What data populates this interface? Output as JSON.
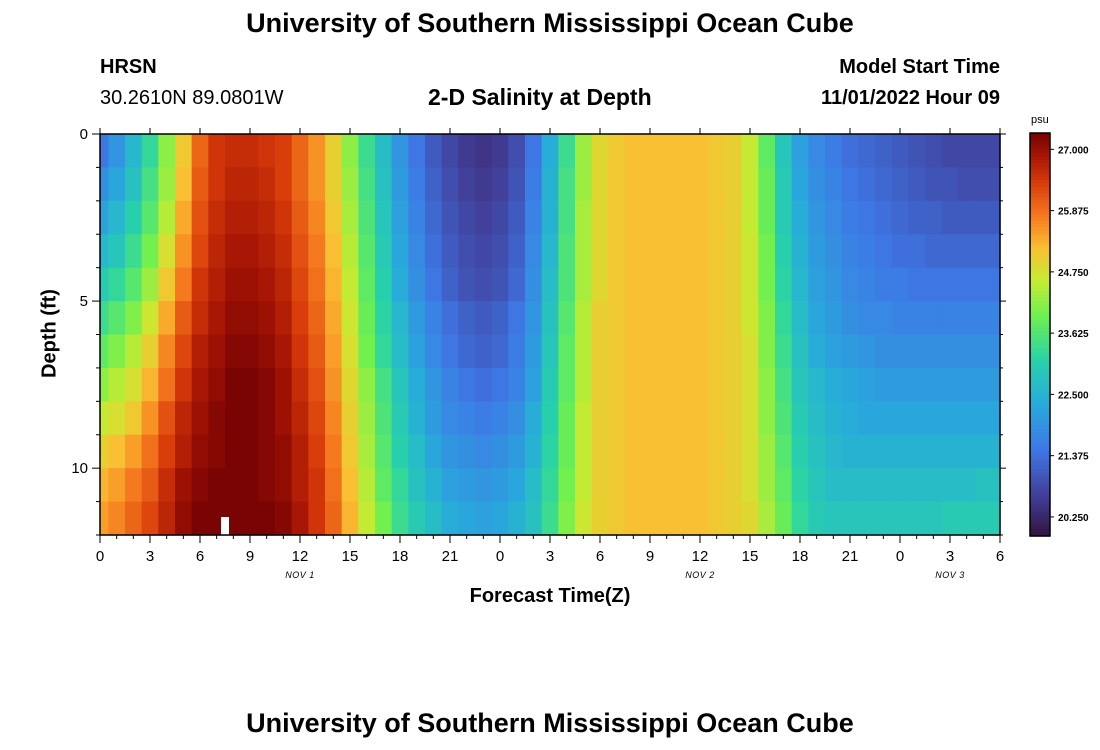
{
  "page": {
    "title": "University of Southern Mississippi Ocean Cube",
    "station": "HRSN",
    "coords": "30.2610N  89.0801W",
    "subtitle": "2-D Salinity at Depth",
    "model_label": "Model Start Time",
    "model_time": "11/01/2022 Hour 09",
    "bottom_title": "University of Southern Mississippi Ocean Cube"
  },
  "chart_data": {
    "type": "heatmap",
    "title": "2-D Salinity at Depth",
    "xlabel": "Forecast Time(Z)",
    "ylabel": "Depth (ft)",
    "units": "psu",
    "x_tick_labels": [
      "0",
      "3",
      "6",
      "9",
      "12",
      "15",
      "18",
      "21",
      "0",
      "3",
      "6",
      "9",
      "12",
      "15",
      "18",
      "21",
      "0",
      "3",
      "6"
    ],
    "x_tick_hours": [
      0,
      3,
      6,
      9,
      12,
      15,
      18,
      21,
      24,
      27,
      30,
      33,
      36,
      39,
      42,
      45,
      48,
      51,
      54
    ],
    "date_labels": [
      {
        "text": "NOV 1",
        "hour": 12
      },
      {
        "text": "NOV 2",
        "hour": 36
      },
      {
        "text": "NOV 3",
        "hour": 51
      }
    ],
    "x_range_hours": [
      0,
      54
    ],
    "y_tick_labels": [
      "0",
      "5",
      "10"
    ],
    "y_tick_depths": [
      0,
      5,
      10
    ],
    "y_range_ft": [
      0,
      12
    ],
    "colorbar_ticks": [
      27.0,
      25.875,
      24.75,
      23.625,
      22.5,
      21.375,
      20.25
    ],
    "colorbar_tick_labels": [
      "27.000",
      "25.875",
      "24.750",
      "23.625",
      "22.500",
      "21.375",
      "20.250"
    ],
    "color_range": [
      19.9,
      27.3
    ],
    "depths_ft": [
      0.5,
      1.5,
      2.5,
      3.5,
      4.5,
      5.5,
      6.5,
      7.5,
      8.5,
      9.5,
      10.5,
      11.5
    ],
    "hours": [
      0,
      1,
      2,
      3,
      4,
      5,
      6,
      7,
      8,
      9,
      10,
      11,
      12,
      13,
      14,
      15,
      16,
      17,
      18,
      19,
      20,
      21,
      22,
      23,
      24,
      25,
      26,
      27,
      28,
      29,
      30,
      31,
      32,
      33,
      34,
      35,
      36,
      37,
      38,
      39,
      40,
      41,
      42,
      43,
      44,
      45,
      46,
      47,
      48,
      49,
      50,
      51,
      52,
      53,
      54
    ],
    "salinity_psu": [
      [
        21.5,
        22.0,
        22.6,
        23.3,
        24.2,
        25.1,
        26.0,
        26.5,
        26.6,
        26.6,
        26.5,
        26.4,
        26.0,
        25.6,
        25.0,
        24.2,
        23.4,
        22.7,
        22.0,
        21.5,
        21.1,
        20.8,
        20.6,
        20.5,
        20.6,
        20.9,
        21.5,
        22.4,
        23.4,
        24.3,
        24.9,
        25.1,
        25.2,
        25.2,
        25.2,
        25.2,
        25.2,
        25.1,
        25.0,
        24.6,
        23.8,
        22.9,
        22.2,
        21.8,
        21.6,
        21.4,
        21.3,
        21.2,
        21.1,
        21.0,
        20.9,
        20.8,
        20.8,
        20.8,
        20.8
      ],
      [
        21.9,
        22.3,
        22.8,
        23.5,
        24.3,
        25.2,
        26.1,
        26.5,
        26.7,
        26.7,
        26.6,
        26.4,
        26.0,
        25.6,
        25.0,
        24.3,
        23.5,
        22.8,
        22.1,
        21.6,
        21.2,
        20.9,
        20.7,
        20.6,
        20.7,
        21.0,
        21.6,
        22.5,
        23.5,
        24.3,
        24.9,
        25.1,
        25.2,
        25.2,
        25.2,
        25.2,
        25.2,
        25.1,
        25.0,
        24.6,
        23.9,
        23.0,
        22.3,
        21.9,
        21.7,
        21.5,
        21.4,
        21.3,
        21.2,
        21.1,
        21.0,
        21.0,
        20.9,
        20.9,
        20.9
      ],
      [
        22.2,
        22.6,
        23.1,
        23.7,
        24.5,
        25.4,
        26.2,
        26.6,
        26.8,
        26.8,
        26.7,
        26.5,
        26.1,
        25.7,
        25.1,
        24.4,
        23.6,
        22.9,
        22.2,
        21.7,
        21.3,
        21.0,
        20.8,
        20.7,
        20.8,
        21.1,
        21.7,
        22.5,
        23.5,
        24.4,
        24.9,
        25.1,
        25.2,
        25.2,
        25.2,
        25.2,
        25.2,
        25.1,
        25.0,
        24.6,
        23.9,
        23.0,
        22.4,
        22.0,
        21.8,
        21.6,
        21.5,
        21.4,
        21.3,
        21.2,
        21.2,
        21.1,
        21.1,
        21.1,
        21.1
      ],
      [
        22.6,
        22.9,
        23.4,
        24.0,
        24.8,
        25.6,
        26.3,
        26.7,
        26.9,
        26.9,
        26.8,
        26.6,
        26.2,
        25.8,
        25.2,
        24.5,
        23.7,
        23.0,
        22.3,
        21.8,
        21.4,
        21.1,
        20.9,
        20.8,
        20.9,
        21.2,
        21.8,
        22.6,
        23.6,
        24.4,
        24.9,
        25.1,
        25.2,
        25.2,
        25.2,
        25.2,
        25.2,
        25.1,
        25.0,
        24.7,
        24.0,
        23.1,
        22.5,
        22.1,
        21.9,
        21.7,
        21.6,
        21.5,
        21.4,
        21.4,
        21.3,
        21.3,
        21.3,
        21.3,
        21.3
      ],
      [
        23.0,
        23.3,
        23.7,
        24.3,
        25.1,
        25.8,
        26.5,
        26.8,
        27.0,
        27.0,
        26.9,
        26.7,
        26.3,
        25.9,
        25.3,
        24.6,
        23.8,
        23.1,
        22.4,
        21.9,
        21.5,
        21.2,
        21.0,
        20.9,
        21.0,
        21.3,
        21.9,
        22.7,
        23.6,
        24.4,
        24.9,
        25.1,
        25.2,
        25.2,
        25.2,
        25.2,
        25.2,
        25.1,
        25.0,
        24.7,
        24.0,
        23.2,
        22.6,
        22.2,
        22.0,
        21.8,
        21.7,
        21.6,
        21.6,
        21.5,
        21.5,
        21.5,
        21.5,
        21.5,
        21.5
      ],
      [
        23.4,
        23.7,
        24.1,
        24.7,
        25.4,
        26.1,
        26.6,
        26.9,
        27.1,
        27.1,
        27.0,
        26.8,
        26.4,
        26.0,
        25.4,
        24.7,
        23.9,
        23.2,
        22.6,
        22.1,
        21.7,
        21.4,
        21.2,
        21.1,
        21.2,
        21.5,
        22.0,
        22.8,
        23.7,
        24.5,
        25.0,
        25.1,
        25.2,
        25.2,
        25.2,
        25.2,
        25.2,
        25.1,
        25.0,
        24.7,
        24.1,
        23.3,
        22.7,
        22.3,
        22.1,
        21.9,
        21.8,
        21.8,
        21.7,
        21.7,
        21.7,
        21.7,
        21.7,
        21.7,
        21.7
      ],
      [
        23.8,
        24.1,
        24.5,
        25.0,
        25.7,
        26.3,
        26.8,
        27.0,
        27.2,
        27.2,
        27.1,
        26.9,
        26.5,
        26.1,
        25.5,
        24.8,
        24.0,
        23.3,
        22.7,
        22.2,
        21.8,
        21.5,
        21.3,
        21.2,
        21.3,
        21.6,
        22.1,
        22.9,
        23.8,
        24.5,
        25.0,
        25.1,
        25.2,
        25.2,
        25.2,
        25.2,
        25.2,
        25.1,
        25.0,
        24.8,
        24.1,
        23.4,
        22.8,
        22.4,
        22.2,
        22.1,
        22.0,
        21.9,
        21.9,
        21.9,
        21.9,
        21.9,
        21.9,
        21.9,
        21.9
      ],
      [
        24.2,
        24.5,
        24.8,
        25.3,
        25.9,
        26.5,
        26.9,
        27.1,
        27.3,
        27.3,
        27.2,
        27.0,
        26.6,
        26.2,
        25.6,
        24.9,
        24.2,
        23.5,
        22.9,
        22.4,
        22.0,
        21.7,
        21.5,
        21.4,
        21.5,
        21.7,
        22.2,
        23.0,
        23.8,
        24.5,
        25.0,
        25.1,
        25.2,
        25.2,
        25.2,
        25.2,
        25.2,
        25.1,
        25.0,
        24.8,
        24.2,
        23.5,
        22.9,
        22.6,
        22.4,
        22.3,
        22.2,
        22.1,
        22.1,
        22.1,
        22.1,
        22.1,
        22.1,
        22.1,
        22.1
      ],
      [
        24.6,
        24.8,
        25.1,
        25.6,
        26.2,
        26.7,
        27.0,
        27.2,
        27.3,
        27.3,
        27.2,
        27.0,
        26.7,
        26.3,
        25.7,
        25.0,
        24.3,
        23.6,
        23.0,
        22.5,
        22.1,
        21.8,
        21.7,
        21.6,
        21.7,
        21.9,
        22.4,
        23.1,
        23.9,
        24.6,
        25.0,
        25.1,
        25.2,
        25.2,
        25.2,
        25.2,
        25.2,
        25.1,
        25.0,
        24.8,
        24.2,
        23.6,
        23.0,
        22.7,
        22.5,
        22.4,
        22.3,
        22.3,
        22.3,
        22.3,
        22.3,
        22.3,
        22.3,
        22.3,
        22.3
      ],
      [
        25.0,
        25.2,
        25.5,
        25.9,
        26.4,
        26.8,
        27.1,
        27.2,
        27.3,
        27.3,
        27.2,
        27.1,
        26.8,
        26.4,
        25.8,
        25.1,
        24.4,
        23.7,
        23.1,
        22.7,
        22.3,
        22.0,
        21.9,
        21.8,
        21.9,
        22.1,
        22.5,
        23.2,
        23.9,
        24.6,
        25.0,
        25.1,
        25.2,
        25.2,
        25.2,
        25.2,
        25.2,
        25.1,
        25.0,
        24.8,
        24.3,
        23.7,
        23.1,
        22.8,
        22.6,
        22.5,
        22.5,
        22.5,
        22.5,
        22.5,
        22.5,
        22.5,
        22.5,
        22.5,
        22.5
      ],
      [
        25.3,
        25.5,
        25.8,
        26.1,
        26.6,
        27.0,
        27.2,
        27.3,
        27.3,
        27.3,
        27.2,
        27.1,
        26.8,
        26.5,
        25.9,
        25.2,
        24.5,
        23.8,
        23.3,
        22.8,
        22.5,
        22.2,
        22.1,
        22.0,
        22.1,
        22.3,
        22.7,
        23.3,
        24.0,
        24.6,
        25.0,
        25.1,
        25.2,
        25.2,
        25.2,
        25.2,
        25.2,
        25.1,
        25.0,
        24.8,
        24.3,
        23.8,
        23.2,
        22.9,
        22.7,
        22.7,
        22.7,
        22.7,
        22.7,
        22.7,
        22.7,
        22.7,
        22.7,
        22.8,
        22.8
      ],
      [
        25.5,
        25.7,
        26.0,
        26.3,
        26.7,
        27.1,
        27.3,
        27.3,
        27.3,
        27.3,
        27.3,
        27.2,
        26.9,
        26.5,
        26.0,
        25.3,
        24.6,
        24.0,
        23.4,
        23.0,
        22.7,
        22.4,
        22.3,
        22.2,
        22.3,
        22.5,
        22.8,
        23.4,
        24.1,
        24.7,
        25.0,
        25.1,
        25.2,
        25.2,
        25.2,
        25.2,
        25.2,
        25.1,
        25.0,
        24.9,
        24.4,
        23.9,
        23.3,
        23.0,
        22.9,
        22.9,
        22.9,
        22.9,
        22.9,
        22.9,
        22.9,
        23.0,
        23.0,
        23.0,
        23.0
      ]
    ]
  }
}
